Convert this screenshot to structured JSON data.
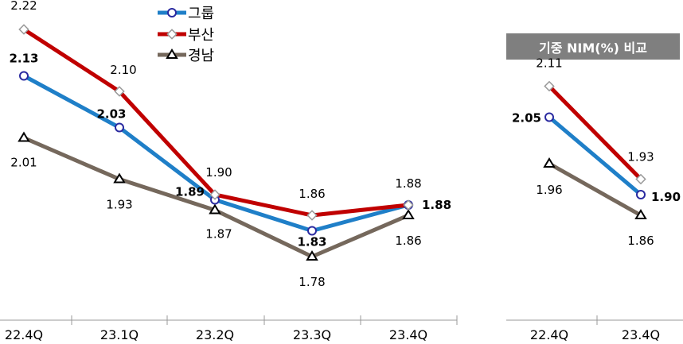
{
  "chart_data": [
    {
      "type": "line",
      "categories": [
        "22.4Q",
        "23.1Q",
        "23.2Q",
        "23.3Q",
        "23.4Q"
      ],
      "series": [
        {
          "name": "그룹",
          "values": [
            2.13,
            2.03,
            1.89,
            1.83,
            1.88
          ],
          "color": "#1f7fc8",
          "marker": "circle",
          "bold_labels": true
        },
        {
          "name": "부산",
          "values": [
            2.22,
            2.1,
            1.9,
            1.86,
            1.88
          ],
          "color": "#c00000",
          "marker": "diamond",
          "bold_labels": false
        },
        {
          "name": "경남",
          "values": [
            2.01,
            1.93,
            1.87,
            1.78,
            1.86
          ],
          "color": "#75685c",
          "marker": "triangle",
          "bold_labels": false
        }
      ],
      "ylim": [
        1.7,
        2.25
      ],
      "legend": "top-center",
      "grid": false
    },
    {
      "type": "line",
      "title": "기중 NIM(%) 비교",
      "title_bg": "#7f7f7f",
      "categories": [
        "22.4Q",
        "23.4Q"
      ],
      "series": [
        {
          "name": "그룹",
          "values": [
            2.05,
            1.9
          ],
          "color": "#1f7fc8",
          "marker": "circle",
          "bold_labels": true
        },
        {
          "name": "부산",
          "values": [
            2.11,
            1.93
          ],
          "color": "#c00000",
          "marker": "diamond",
          "bold_labels": false
        },
        {
          "name": "경남",
          "values": [
            1.96,
            1.86
          ],
          "color": "#75685c",
          "marker": "triangle",
          "bold_labels": false
        }
      ],
      "grid": false
    }
  ]
}
